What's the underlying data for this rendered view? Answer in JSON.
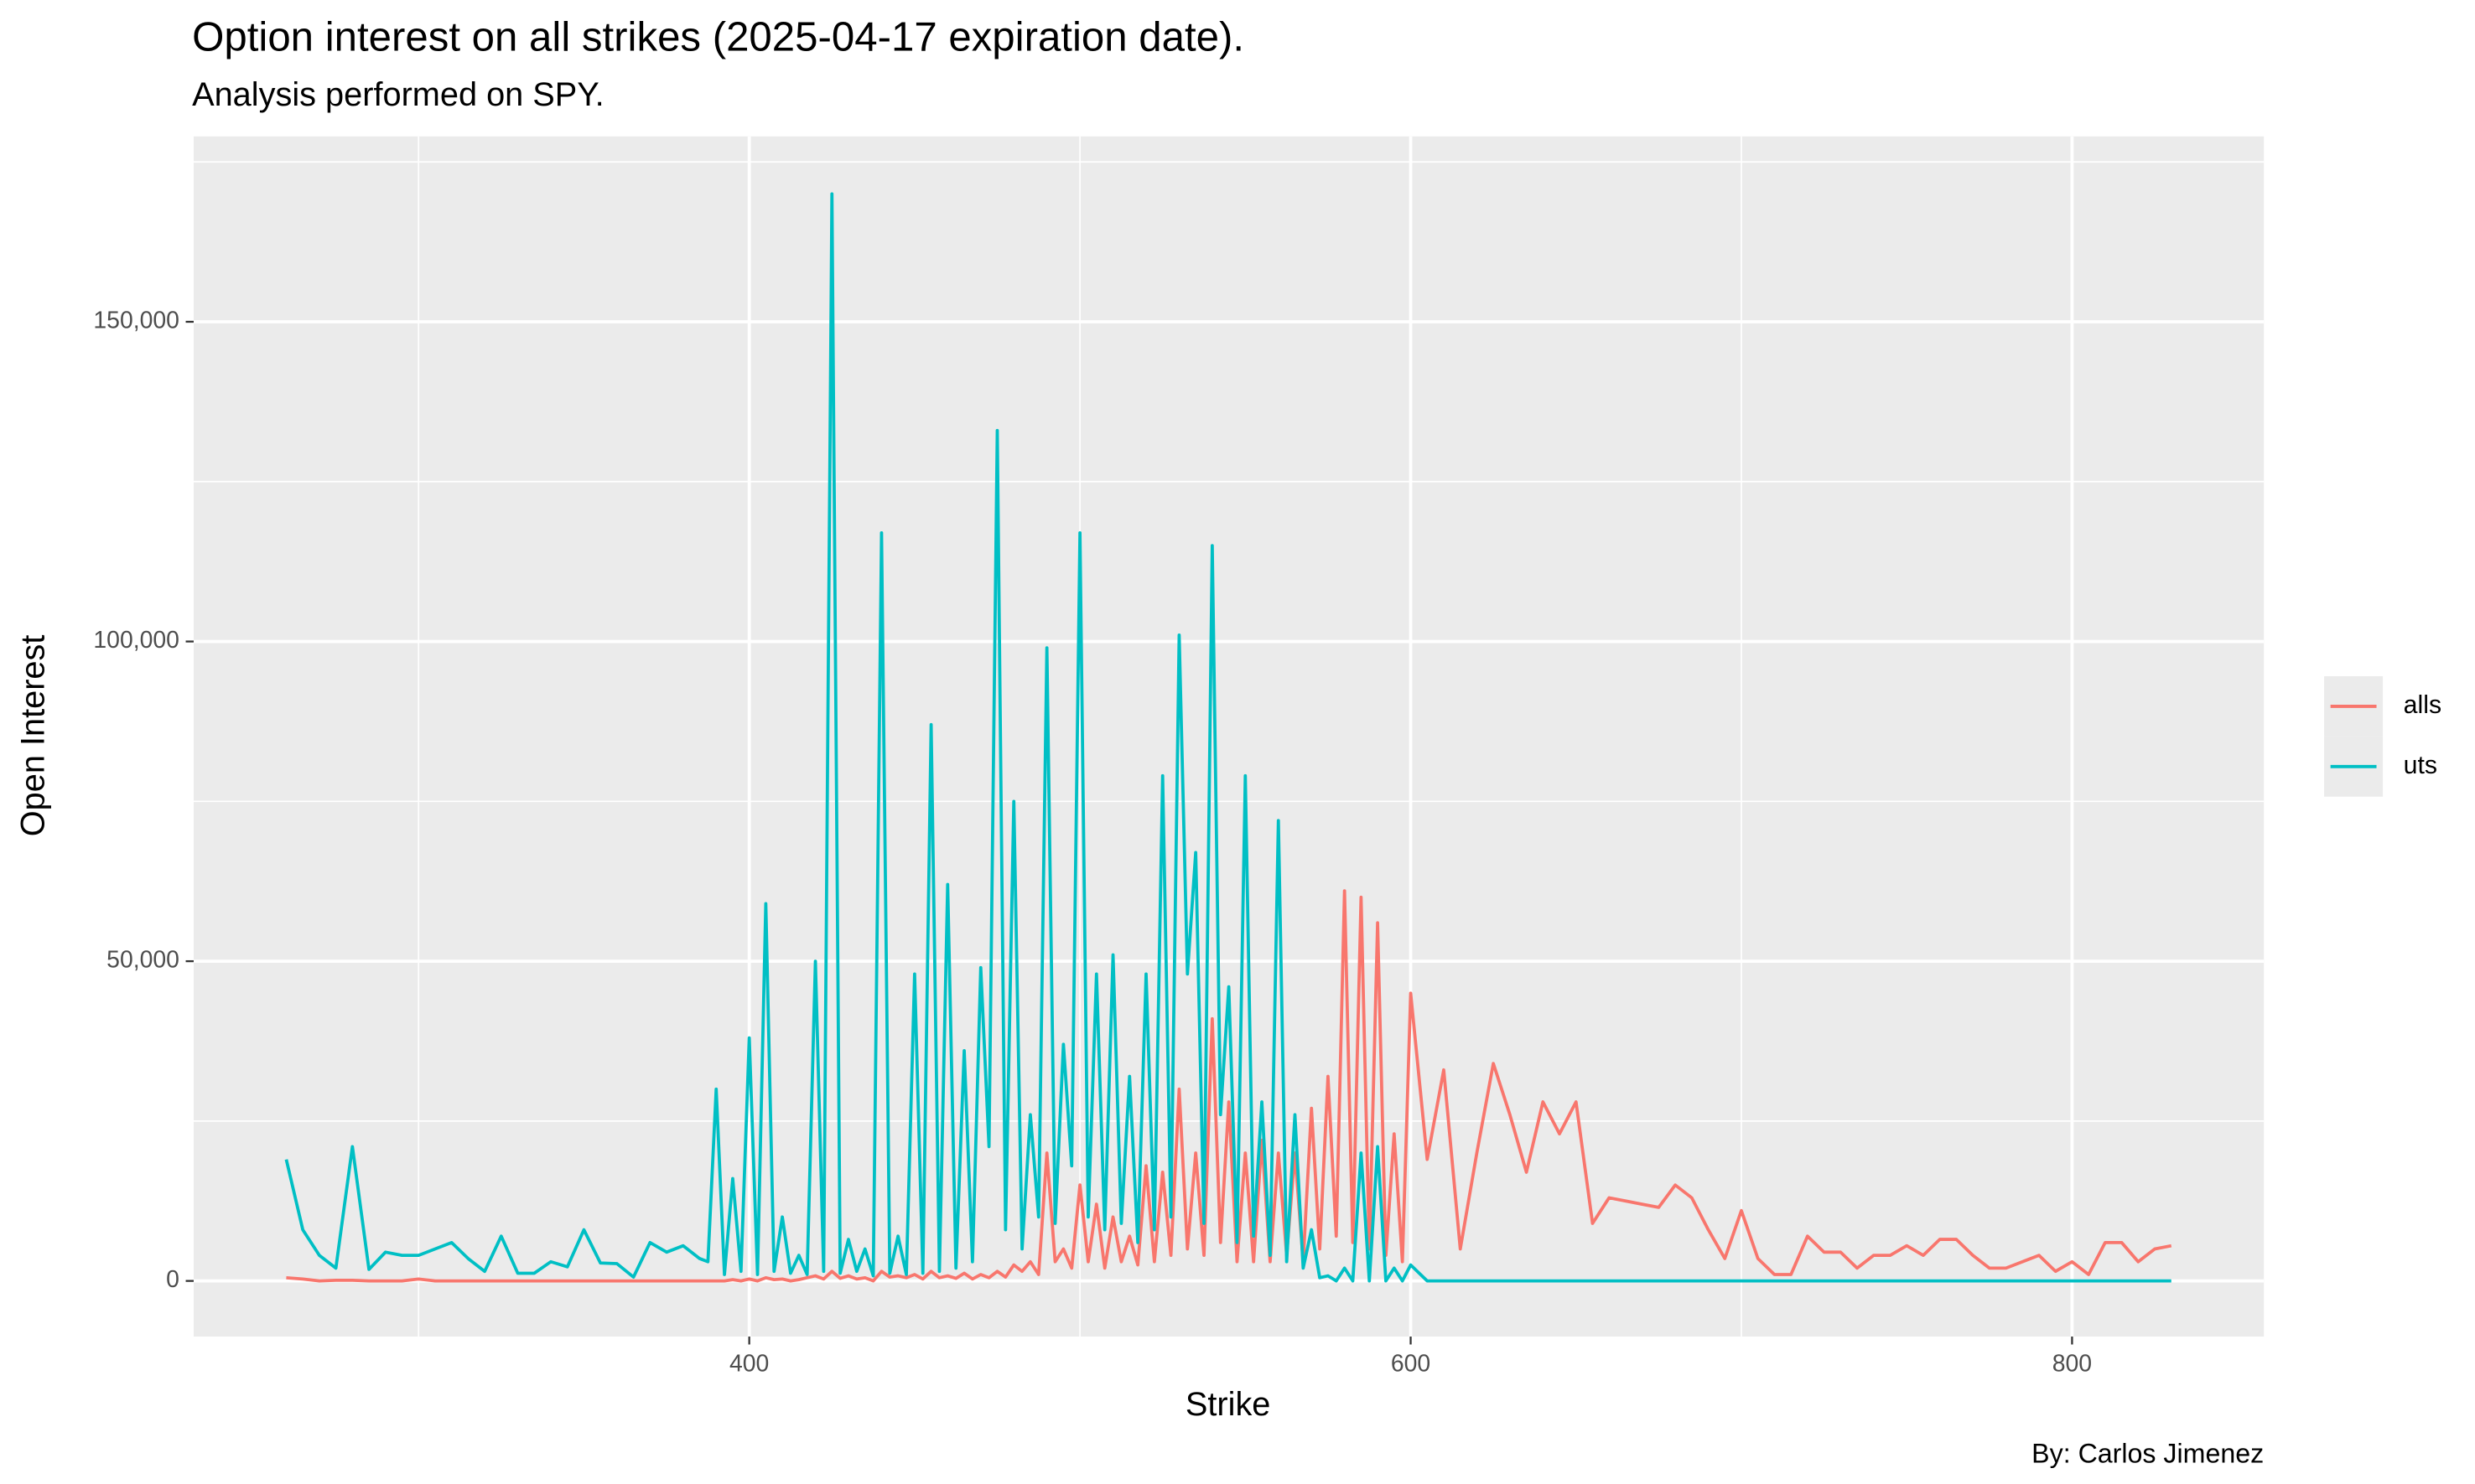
{
  "chart_data": {
    "type": "line",
    "title": "Option interest on all strikes (2025-04-17 expiration date).",
    "subtitle": "Analysis performed on SPY.",
    "caption": "By: Carlos Jimenez",
    "x_label": "Strike",
    "y_label": "Open Interest",
    "legend": "right",
    "grid": true,
    "xlim": [
      232,
      858
    ],
    "ylim": [
      -8700,
      179000
    ],
    "xticks": [
      400,
      600,
      800
    ],
    "x_minor_ticks": [
      300,
      500,
      700
    ],
    "yticks": [
      0,
      {
        "value": 50000,
        "label": "50,000"
      },
      {
        "value": 100000,
        "label": "100,000"
      },
      {
        "value": 150000,
        "label": "150,000"
      }
    ],
    "y_minor_ticks": [
      25000,
      75000,
      125000,
      175000
    ],
    "x": [
      260,
      265,
      270,
      275,
      280,
      285,
      290,
      295,
      300,
      305,
      310,
      315,
      320,
      325,
      330,
      335,
      340,
      345,
      350,
      355,
      360,
      365,
      370,
      375,
      380,
      385,
      387.5,
      390,
      392.5,
      395,
      397.5,
      400,
      402.5,
      405,
      407.5,
      410,
      412.5,
      415,
      417.5,
      420,
      422.5,
      425,
      427.5,
      430,
      432.5,
      435,
      437.5,
      440,
      442.5,
      445,
      447.5,
      450,
      452.5,
      455,
      457.5,
      460,
      462.5,
      465,
      467.5,
      470,
      472.5,
      475,
      477.5,
      480,
      482.5,
      485,
      487.5,
      490,
      492.5,
      495,
      497.5,
      500,
      502.5,
      505,
      507.5,
      510,
      512.5,
      515,
      517.5,
      520,
      522.5,
      525,
      527.5,
      530,
      532.5,
      535,
      537.5,
      540,
      542.5,
      545,
      547.5,
      550,
      552.5,
      555,
      557.5,
      560,
      562.5,
      565,
      567.5,
      570,
      572.5,
      575,
      577.5,
      580,
      582.5,
      585,
      587.5,
      590,
      592.5,
      595,
      597.5,
      600,
      605,
      610,
      615,
      620,
      625,
      630,
      635,
      640,
      645,
      650,
      655,
      660,
      665,
      670,
      675,
      680,
      685,
      690,
      695,
      700,
      705,
      710,
      715,
      720,
      725,
      730,
      735,
      740,
      745,
      750,
      755,
      760,
      765,
      770,
      775,
      780,
      785,
      790,
      795,
      800,
      805,
      810,
      815,
      820,
      825,
      830
    ],
    "series": [
      {
        "name": "alls",
        "color": "#F8766D",
        "values": [
          500,
          300,
          0,
          100,
          100,
          0,
          0,
          0,
          300,
          0,
          0,
          0,
          0,
          0,
          0,
          0,
          0,
          0,
          0,
          0,
          0,
          0,
          0,
          0,
          0,
          0,
          0,
          0,
          0,
          200,
          0,
          300,
          0,
          500,
          200,
          300,
          0,
          200,
          500,
          800,
          300,
          1500,
          400,
          800,
          300,
          500,
          0,
          1500,
          600,
          800,
          500,
          1000,
          300,
          1500,
          500,
          800,
          400,
          1200,
          300,
          1000,
          500,
          1500,
          600,
          2500,
          1500,
          3000,
          1000,
          20000,
          3000,
          5000,
          2000,
          15000,
          3000,
          12000,
          2000,
          10000,
          3000,
          7000,
          2500,
          18000,
          3000,
          17000,
          4000,
          30000,
          5000,
          20000,
          4000,
          41000,
          6000,
          28000,
          3000,
          20000,
          3000,
          22000,
          3000,
          20000,
          4000,
          20000,
          3000,
          27000,
          5000,
          32000,
          7000,
          61000,
          6000,
          60000,
          5000,
          56000,
          4000,
          23000,
          3000,
          45000,
          19000,
          33000,
          5000,
          20000,
          34000,
          26000,
          17000,
          28000,
          23000,
          28000,
          9000,
          13000,
          12500,
          12000,
          11500,
          15000,
          13000,
          8000,
          3500,
          11000,
          3500,
          1000,
          1000,
          7000,
          4500,
          4500,
          2000,
          4000,
          4000,
          5500,
          4000,
          6500,
          6500,
          4000,
          2000,
          2000,
          3000,
          4000,
          1500,
          3000,
          1000,
          6000,
          6000,
          3000,
          5000,
          5500
        ]
      },
      {
        "name": "uts",
        "color": "#00BFC4",
        "values": [
          19000,
          8000,
          4000,
          2000,
          21000,
          1800,
          4500,
          4000,
          4000,
          5000,
          6000,
          3500,
          1500,
          7000,
          1200,
          1200,
          3000,
          2200,
          8000,
          2800,
          2700,
          600,
          6000,
          4500,
          5500,
          3500,
          3000,
          30000,
          1000,
          16000,
          1500,
          38000,
          1000,
          59000,
          1500,
          10000,
          1200,
          4000,
          1000,
          50000,
          1500,
          170000,
          1200,
          6500,
          1500,
          5000,
          800,
          117000,
          1200,
          7000,
          1000,
          48000,
          1200,
          87000,
          1500,
          62000,
          2000,
          36000,
          3000,
          49000,
          21000,
          133000,
          8000,
          75000,
          5000,
          26000,
          10000,
          99000,
          9000,
          37000,
          18000,
          117000,
          10000,
          48000,
          8000,
          51000,
          9000,
          32000,
          6000,
          48000,
          8000,
          79000,
          10000,
          101000,
          48000,
          67000,
          9000,
          115000,
          26000,
          46000,
          6000,
          79000,
          7000,
          28000,
          4000,
          72000,
          3000,
          26000,
          2000,
          8000,
          500,
          800,
          0,
          2000,
          0,
          20000,
          0,
          21000,
          0,
          2000,
          0,
          2500,
          0,
          0,
          0,
          0,
          0,
          0,
          0,
          0,
          0,
          0,
          0,
          0,
          0,
          0,
          0,
          0,
          0,
          0,
          0,
          0,
          0,
          0,
          0,
          0,
          0,
          0,
          0,
          0,
          0,
          0,
          0,
          0,
          0,
          0,
          0,
          0,
          0,
          0,
          0,
          0,
          0,
          0,
          0,
          0,
          0,
          0
        ]
      }
    ]
  }
}
